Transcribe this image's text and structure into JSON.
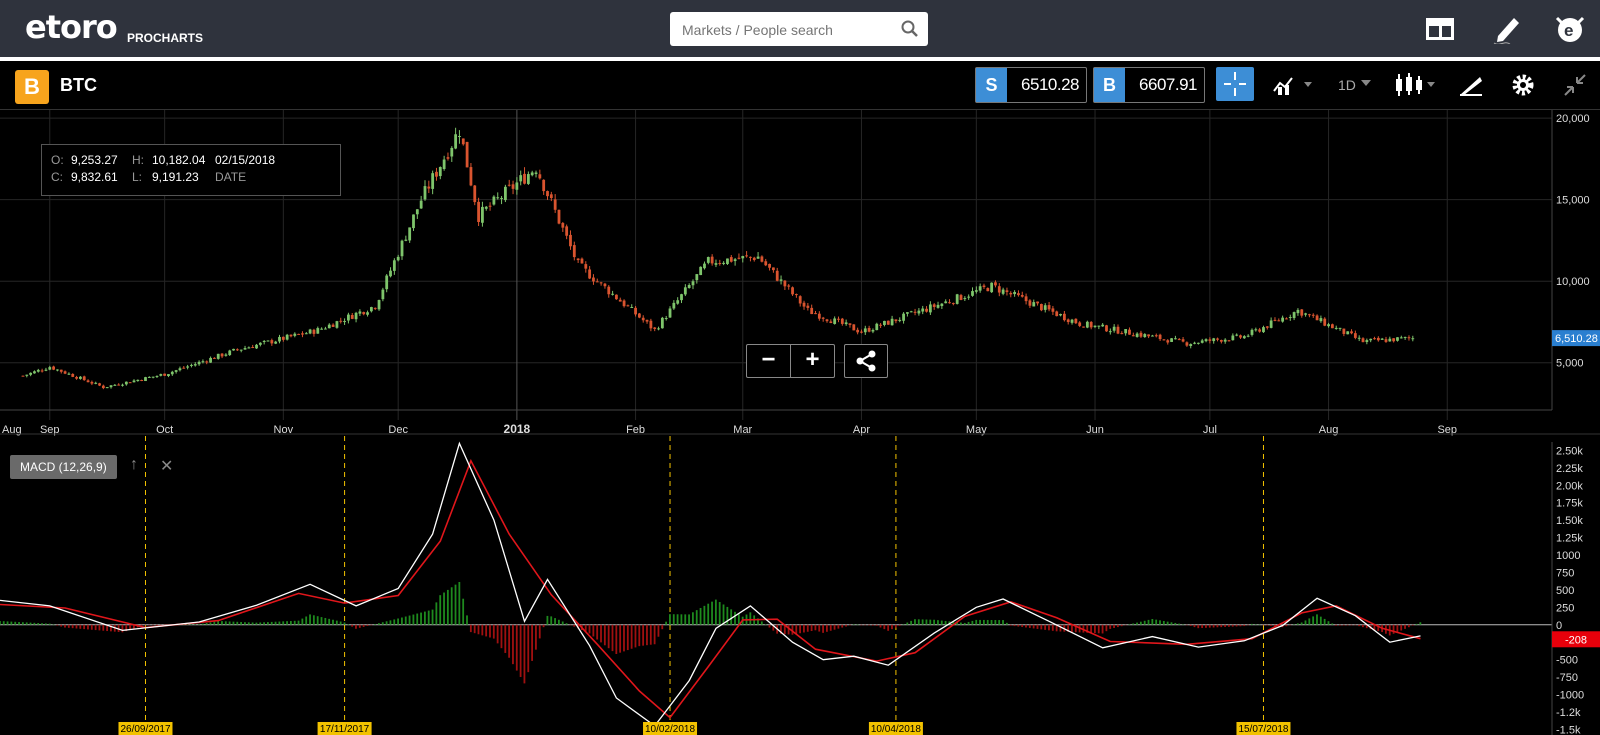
{
  "app": {
    "logo": "etoro",
    "logo_sub": "PROCHARTS",
    "search_placeholder": "Markets / People search"
  },
  "instrument": {
    "name": "BTC",
    "badge": "B",
    "sell_tag": "S",
    "sell_price": "6510.28",
    "buy_tag": "B",
    "buy_price": "6607.91",
    "timeframe": "1D"
  },
  "ohlc": {
    "o_label": "O:",
    "o": "9,253.27",
    "h_label": "H:",
    "h": "10,182.04",
    "c_label": "C:",
    "c": "9,832.61",
    "l_label": "L:",
    "l": "9,191.23",
    "date": "02/15/2018",
    "date_label": "DATE"
  },
  "chart_data": [
    {
      "type": "candlestick",
      "title": "",
      "y_ticks": [
        "20,000",
        "15,000",
        "10,000",
        "5,000"
      ],
      "ylim": [
        3000,
        20500
      ],
      "x_tick_labels": [
        "Aug",
        "Sep",
        "Oct",
        "Nov",
        "Dec",
        "2018",
        "Feb",
        "Mar",
        "Apr",
        "May",
        "Jun",
        "Jul",
        "Aug",
        "Sep"
      ],
      "current_price_label": "6,510.28",
      "approx_close_path": [
        [
          "2017-08-25",
          4200
        ],
        [
          "2017-09-01",
          4750
        ],
        [
          "2017-09-15",
          3500
        ],
        [
          "2017-10-01",
          4300
        ],
        [
          "2017-10-20",
          5800
        ],
        [
          "2017-11-10",
          7000
        ],
        [
          "2017-11-25",
          8500
        ],
        [
          "2017-12-07",
          15000
        ],
        [
          "2017-12-17",
          19300
        ],
        [
          "2017-12-22",
          14000
        ],
        [
          "2018-01-06",
          17000
        ],
        [
          "2018-01-17",
          11000
        ],
        [
          "2018-02-06",
          7000
        ],
        [
          "2018-02-20",
          11200
        ],
        [
          "2018-03-05",
          11500
        ],
        [
          "2018-03-18",
          8200
        ],
        [
          "2018-04-01",
          6900
        ],
        [
          "2018-05-05",
          9700
        ],
        [
          "2018-05-28",
          7400
        ],
        [
          "2018-06-25",
          6200
        ],
        [
          "2018-07-10",
          6600
        ],
        [
          "2018-07-24",
          8200
        ],
        [
          "2018-08-10",
          6300
        ],
        [
          "2018-08-23",
          6510
        ]
      ]
    },
    {
      "type": "line",
      "title": "MACD (12,26,9)",
      "y_ticks": [
        "2.50k",
        "2.25k",
        "2.00k",
        "1.75k",
        "1.50k",
        "1.25k",
        "1000",
        "750",
        "500",
        "250",
        "0",
        "-250",
        "-500",
        "-750",
        "-1000",
        "-1.2k",
        "-1.5k"
      ],
      "ylim": [
        -1550,
        2600
      ],
      "current_value_label": "-208",
      "date_markers": [
        "26/09/2017",
        "17/11/2017",
        "10/02/2018",
        "10/04/2018",
        "15/07/2018"
      ],
      "series": [
        {
          "name": "MACD",
          "color": "#ffffff"
        },
        {
          "name": "Signal",
          "color": "#e0161b"
        }
      ]
    }
  ],
  "colors": {
    "up_candle": "#7ec46b",
    "down_candle": "#d9542f",
    "accent": "#3d8ed6",
    "marker": "#f2c200",
    "price_badge": "#2a7fd0",
    "macd_badge": "#e8000b"
  },
  "controls": {
    "zoom_out": "−",
    "zoom_in": "+",
    "macd_up": "↑",
    "macd_close": "✕"
  }
}
